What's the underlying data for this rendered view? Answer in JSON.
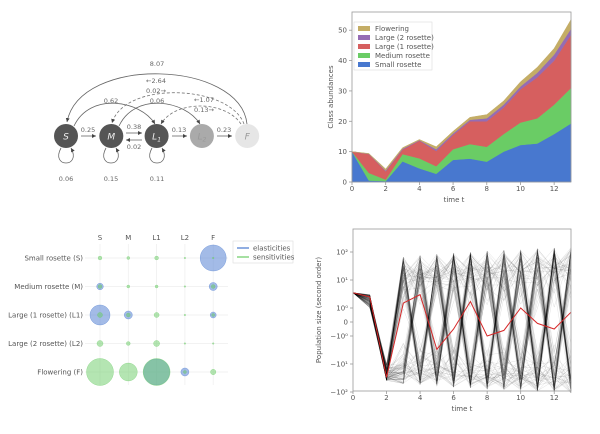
{
  "diagram": {
    "nodes": [
      {
        "label": "S",
        "color": "#555555"
      },
      {
        "label": "M",
        "color": "#555555"
      },
      {
        "label": "L1",
        "color": "#555555"
      },
      {
        "label": "L2",
        "color": "#aaaaaa"
      },
      {
        "label": "F",
        "color": "#e6e6e6"
      }
    ],
    "edges": {
      "s_m": "0.25",
      "m_l1": "0.38",
      "l1_m": "0.02",
      "l1_l2": "0.13",
      "l2_f": "0.23",
      "s_s": "0.06",
      "m_m": "0.15",
      "l1_l1": "0.11",
      "f_s": "8.07",
      "f_m": "←2.64",
      "m_f": "0.02→",
      "s_l1": "0.62",
      "m_l2": "0.06",
      "f_l1": "←1.07",
      "l1_f": "0.13→"
    }
  },
  "chart_data": [
    {
      "type": "area",
      "stacked": true,
      "xlabel": "time t",
      "ylabel": "Class abundances",
      "x": [
        0,
        1,
        2,
        3,
        4,
        5,
        6,
        7,
        8,
        9,
        10,
        11,
        12,
        13
      ],
      "ylim": [
        0,
        56
      ],
      "xlim": [
        0,
        13
      ],
      "yticks": [
        "0",
        "10",
        "20",
        "30",
        "40",
        "50"
      ],
      "xticks": [
        "0",
        "2",
        "4",
        "6",
        "8",
        "10",
        "12"
      ],
      "legend": "top-left",
      "series": [
        {
          "name": "Small rosette",
          "color": "#4878cf",
          "values": [
            10,
            0.5,
            0.3,
            6.8,
            4.5,
            2.7,
            7.3,
            7.7,
            6.7,
            10,
            12.2,
            12.7,
            15.8,
            19.3
          ]
        },
        {
          "name": "Medium rosette",
          "color": "#6acc65",
          "values": [
            0,
            2.5,
            0.5,
            2.4,
            3.3,
            2.5,
            3.5,
            4.8,
            4.9,
            5.8,
            7.4,
            8.3,
            9.7,
            11.7
          ]
        },
        {
          "name": "Large (1 rosette)",
          "color": "#d65f5f",
          "values": [
            0,
            6.2,
            2.7,
            1.5,
            5.8,
            5,
            4.7,
            7.5,
            8.4,
            8.7,
            10.9,
            13.5,
            14.5,
            17.5
          ]
        },
        {
          "name": "Large (2 rosette)",
          "color": "#956cb4",
          "values": [
            0,
            0.1,
            0.3,
            0.3,
            0.2,
            0.6,
            0.5,
            0.5,
            1,
            1,
            1,
            1.5,
            2,
            2
          ]
        },
        {
          "name": "Flowering",
          "color": "#c4ad66",
          "values": [
            0,
            0.1,
            0.5,
            0.3,
            0.2,
            0.8,
            0.7,
            0.8,
            1.2,
            1.2,
            1.5,
            1.8,
            2,
            3
          ]
        }
      ]
    },
    {
      "type": "scatter",
      "subtype": "bubble",
      "columns": [
        "S",
        "M",
        "L1",
        "L2",
        "F"
      ],
      "rows": [
        "Small rosette (S)",
        "Medium rosette (M)",
        "Large (1 rosette) (L1)",
        "Large (2 rosette) (L2)",
        "Flowering (F)"
      ],
      "legend": "top-right",
      "series": [
        {
          "name": "elasticities",
          "color": "#4878cf",
          "values": [
            [
              0,
              0,
              0,
              0,
              0.93
            ],
            [
              0.06,
              0,
              0,
              0,
              0.09
            ],
            [
              0.55,
              0.09,
              0,
              0,
              0.05
            ],
            [
              0,
              0,
              0,
              0,
              0
            ],
            [
              0,
              0,
              0.93,
              0.09,
              0
            ]
          ]
        },
        {
          "name": "sensitivities",
          "color": "#6acc65",
          "values": [
            [
              0.02,
              0.012,
              0.02,
              0.003,
              0.004
            ],
            [
              0.02,
              0.012,
              0.012,
              0.003,
              0.02
            ],
            [
              0.035,
              0.02,
              0.035,
              0.003,
              0.012
            ],
            [
              0.05,
              0.02,
              0.05,
              0.003,
              0.003
            ],
            [
              1,
              0.44,
              1,
              0.012,
              0.04
            ]
          ]
        }
      ]
    },
    {
      "type": "line",
      "xlabel": "time t",
      "ylabel": "Population size (second order)",
      "yscale": "symlog",
      "x": [
        0,
        1,
        2,
        3,
        4,
        5,
        6,
        7,
        8,
        9,
        10,
        11,
        12,
        13
      ],
      "yticks": [
        "10²",
        "10¹",
        "10⁰",
        "0",
        "−10⁰",
        "−10¹",
        "−10²"
      ],
      "xticks": [
        "0",
        "2",
        "4",
        "6",
        "8",
        "10",
        "12"
      ],
      "series": [
        {
          "name": "highlighted",
          "color": "#d62728",
          "values": [
            3.5,
            2.5,
            -30,
            1.5,
            3,
            -3,
            -0.5,
            1.7,
            -1,
            -0.6,
            1,
            -0.1,
            -0.5,
            0.7
          ]
        }
      ]
    }
  ]
}
